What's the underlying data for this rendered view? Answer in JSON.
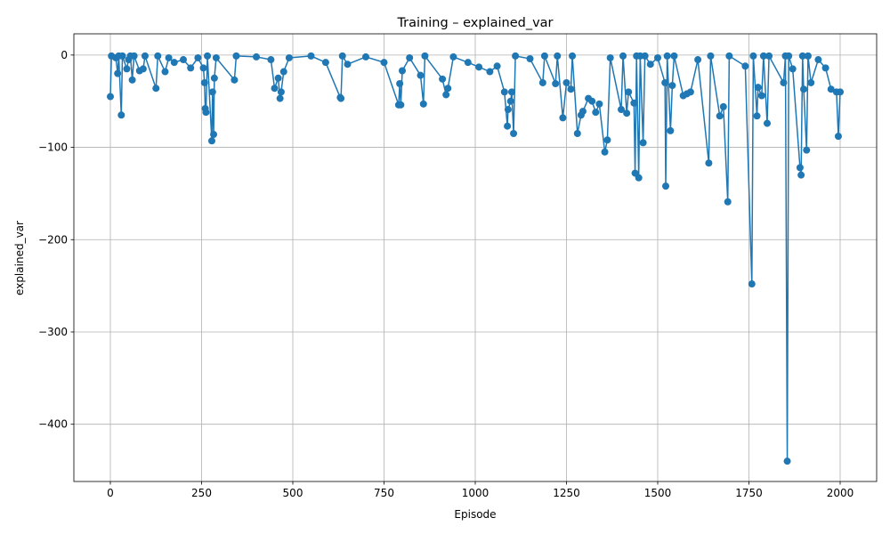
{
  "chart_data": {
    "type": "line",
    "title": "Training – explained_var",
    "xlabel": "Episode",
    "ylabel": "explained_var",
    "x": [
      0,
      3,
      15,
      20,
      23,
      30,
      33,
      45,
      50,
      55,
      60,
      65,
      80,
      90,
      95,
      125,
      130,
      150,
      160,
      175,
      200,
      220,
      240,
      255,
      258,
      260,
      262,
      266,
      278,
      280,
      283,
      285,
      290,
      340,
      345,
      400,
      440,
      450,
      460,
      465,
      468,
      475,
      490,
      550,
      590,
      630,
      632,
      636,
      650,
      700,
      750,
      790,
      793,
      796,
      800,
      820,
      850,
      858,
      862,
      910,
      920,
      925,
      940,
      980,
      1010,
      1040,
      1060,
      1080,
      1088,
      1090,
      1097,
      1100,
      1105,
      1110,
      1150,
      1185,
      1190,
      1220,
      1225,
      1240,
      1250,
      1262,
      1266,
      1280,
      1290,
      1295,
      1310,
      1320,
      1330,
      1340,
      1355,
      1362,
      1370,
      1400,
      1405,
      1415,
      1420,
      1435,
      1438,
      1442,
      1448,
      1452,
      1460,
      1465,
      1480,
      1500,
      1520,
      1522,
      1526,
      1535,
      1540,
      1545,
      1570,
      1580,
      1590,
      1610,
      1640,
      1645,
      1670,
      1680,
      1692,
      1696,
      1740,
      1758,
      1762,
      1772,
      1775,
      1785,
      1790,
      1800,
      1805,
      1845,
      1850,
      1855,
      1859,
      1870,
      1890,
      1893,
      1897,
      1900,
      1908,
      1912,
      1920,
      1940,
      1960,
      1975,
      1990,
      1995,
      2000
    ],
    "values": [
      -45,
      -1,
      -3,
      -20,
      -1,
      -65,
      -1,
      -15,
      -5,
      -1,
      -27,
      -1,
      -17,
      -15,
      -1,
      -36,
      -1,
      -18,
      -3,
      -8,
      -5,
      -14,
      -3,
      -14,
      -30,
      -58,
      -62,
      -1,
      -93,
      -40,
      -86,
      -25,
      -3,
      -27,
      -1,
      -2,
      -5,
      -36,
      -25,
      -47,
      -40,
      -18,
      -3,
      -1,
      -8,
      -46,
      -47,
      -1,
      -10,
      -2,
      -8,
      -54,
      -31,
      -54,
      -17,
      -3,
      -22,
      -53,
      -1,
      -26,
      -43,
      -36,
      -2,
      -8,
      -13,
      -18,
      -12,
      -40,
      -77,
      -59,
      -50,
      -40,
      -85,
      -1,
      -4,
      -30,
      -1,
      -31,
      -1,
      -68,
      -30,
      -37,
      -1,
      -85,
      -65,
      -61,
      -47,
      -50,
      -62,
      -53,
      -105,
      -92,
      -3,
      -59,
      -1,
      -63,
      -40,
      -52,
      -128,
      -1,
      -133,
      -1,
      -95,
      -1,
      -10,
      -3,
      -30,
      -142,
      -1,
      -82,
      -33,
      -1,
      -44,
      -42,
      -40,
      -5,
      -117,
      -1,
      -66,
      -56,
      -159,
      -1,
      -12,
      -248,
      -1,
      -66,
      -35,
      -44,
      -1,
      -74,
      -1,
      -30,
      -1,
      -440,
      -1,
      -15,
      -122,
      -130,
      -1,
      -37,
      -103,
      -1,
      -30,
      -5,
      -14,
      -37,
      -40,
      -88,
      -40
    ],
    "color": "#1f77b4",
    "xlim": [
      -100,
      2100
    ],
    "xticks": [
      0,
      250,
      500,
      750,
      1000,
      1250,
      1500,
      1750,
      2000
    ],
    "ylim": [
      -462,
      23
    ],
    "yticks": [
      {
        "value": 0,
        "label": "0"
      },
      {
        "value": -100,
        "label": "−100"
      },
      {
        "value": -200,
        "label": "−200"
      },
      {
        "value": -300,
        "label": "−300"
      },
      {
        "value": -400,
        "label": "−400"
      }
    ],
    "grid": true
  }
}
